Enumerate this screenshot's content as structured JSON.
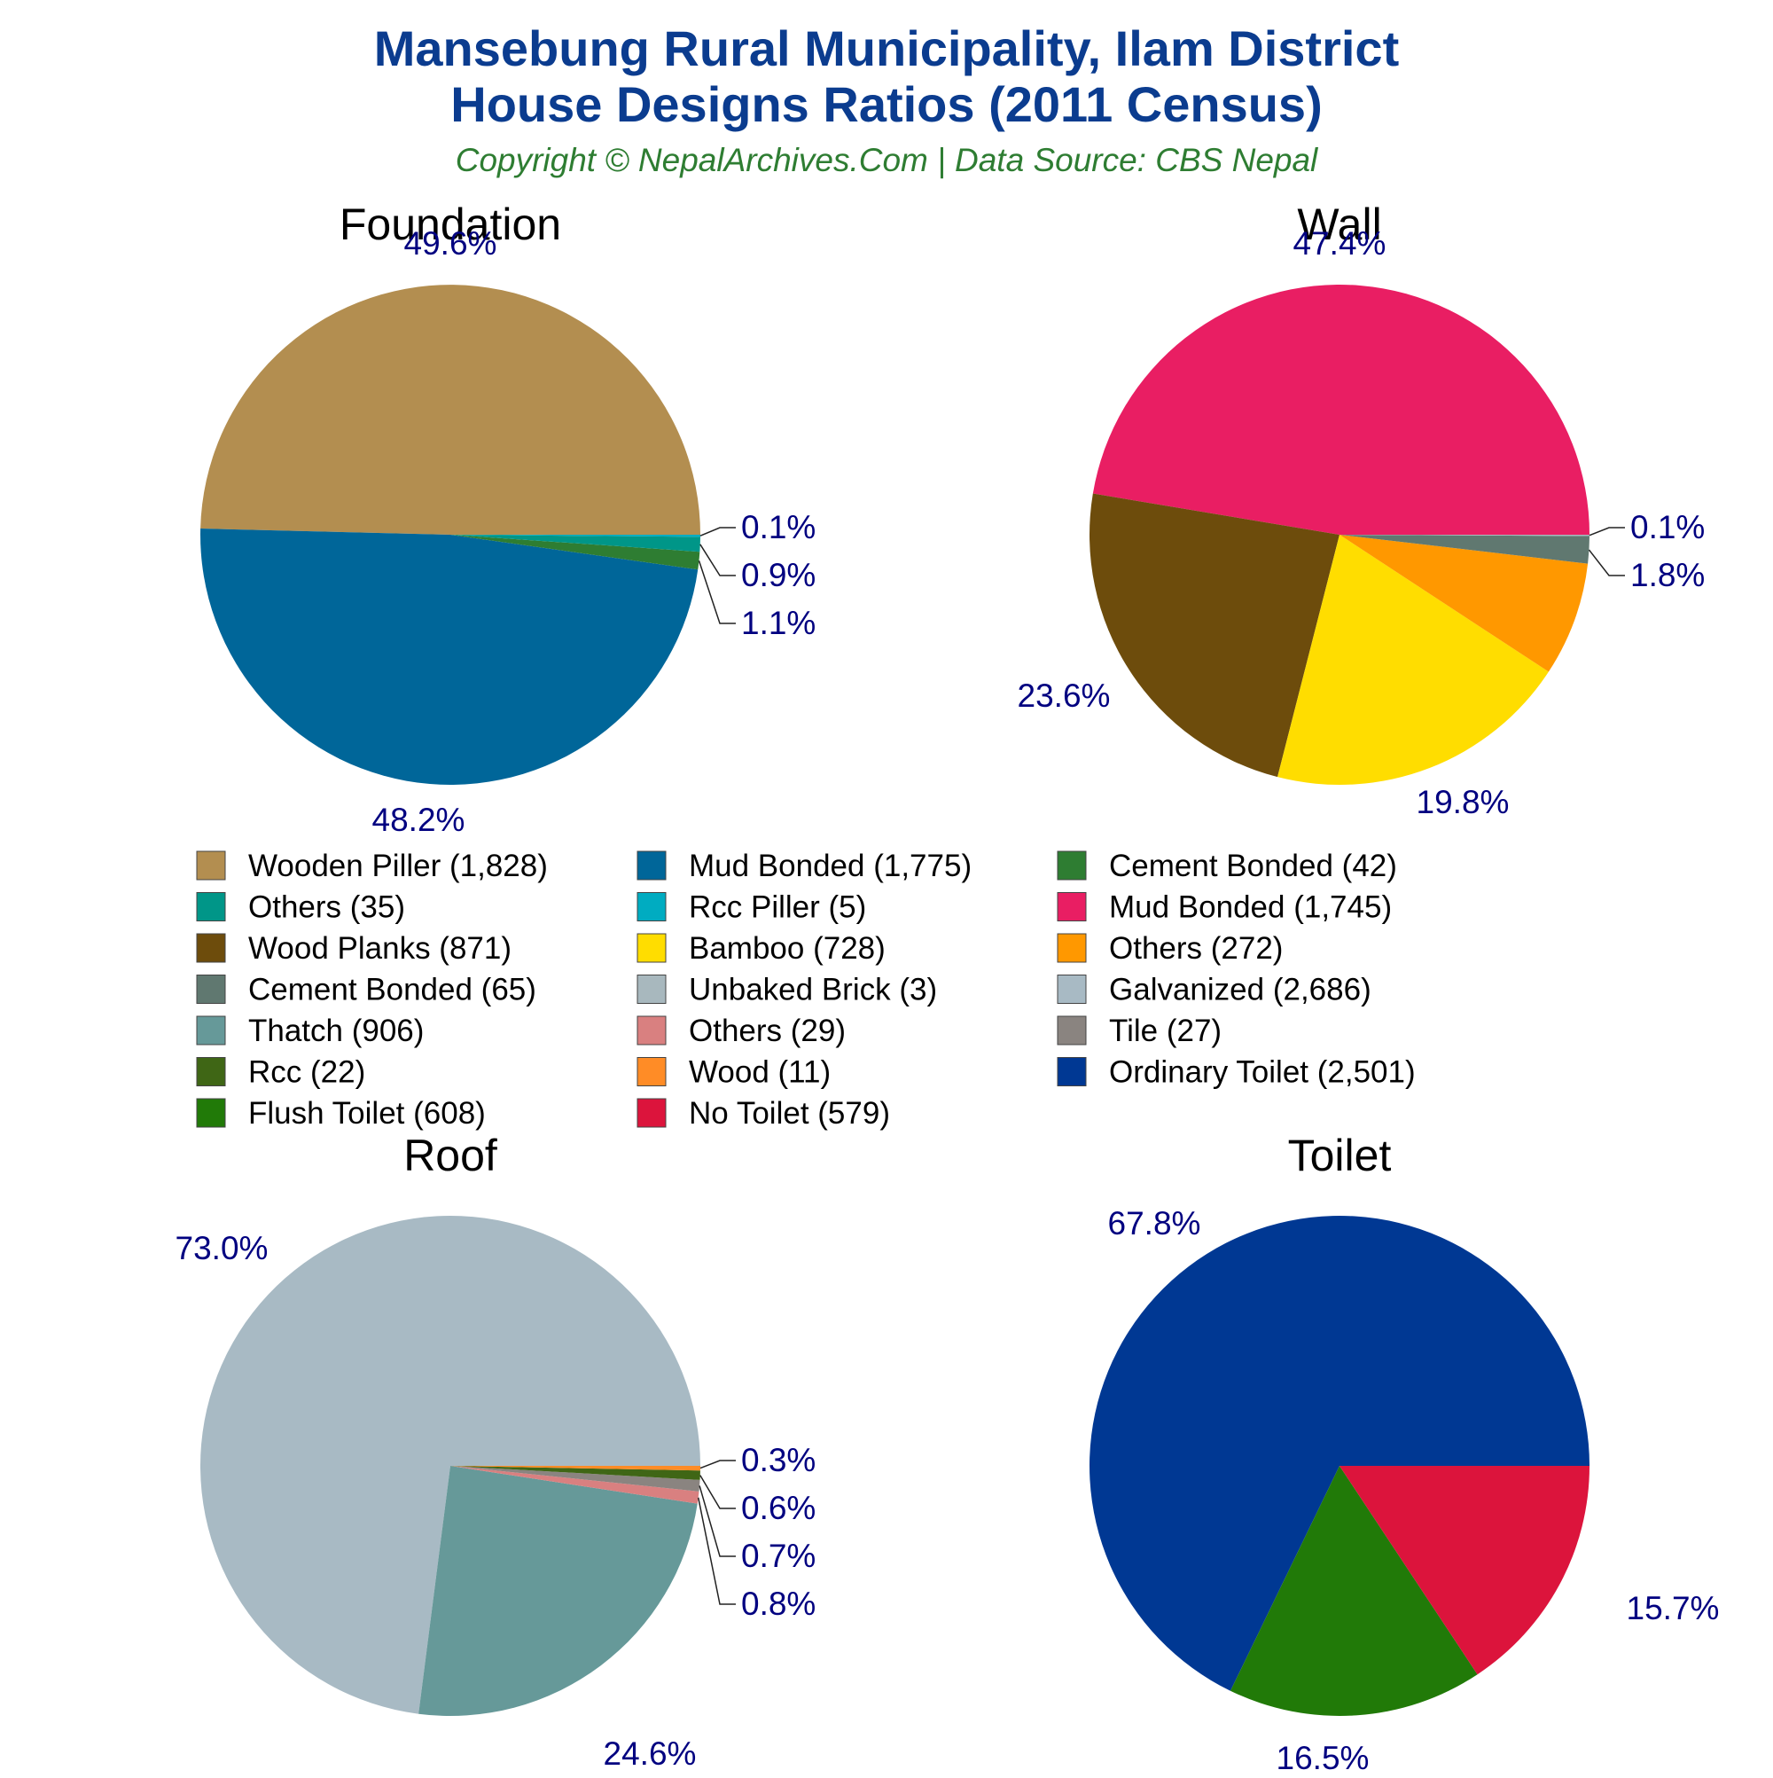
{
  "header": {
    "title_line1": "Mansebung Rural Municipality, Ilam District",
    "title_line2": "House Designs Ratios (2011 Census)",
    "subtitle": "Copyright © NepalArchives.Com | Data Source: CBS Nepal",
    "title_color": "#0B3C8F",
    "subtitle_color": "#2E7D32"
  },
  "label_color": "#000080",
  "chart_data": [
    {
      "type": "pie",
      "title": "Foundation",
      "slices": [
        {
          "label": "Wooden Piller",
          "value": 1828,
          "percent": "49.6%",
          "color": "#B38E50"
        },
        {
          "label": "Mud Bonded",
          "value": 1775,
          "percent": "48.2%",
          "color": "#006699"
        },
        {
          "label": "Cement Bonded",
          "value": 42,
          "percent": "1.1%",
          "color": "#2E7D32"
        },
        {
          "label": "Others",
          "value": 35,
          "percent": "0.9%",
          "color": "#009688"
        },
        {
          "label": "Rcc Piller",
          "value": 5,
          "percent": "0.1%",
          "color": "#00ACC1"
        }
      ]
    },
    {
      "type": "pie",
      "title": "Wall",
      "slices": [
        {
          "label": "Mud Bonded",
          "value": 1745,
          "percent": "47.4%",
          "color": "#E91E63"
        },
        {
          "label": "Wood Planks",
          "value": 871,
          "percent": "23.6%",
          "color": "#6D4C0C"
        },
        {
          "label": "Bamboo",
          "value": 728,
          "percent": "19.8%",
          "color": "#FFDD00"
        },
        {
          "label": "Others",
          "value": 272,
          "percent": "7.4%",
          "color": "#FF9800"
        },
        {
          "label": "Cement Bonded",
          "value": 65,
          "percent": "1.8%",
          "color": "#607870"
        },
        {
          "label": "Unbaked Brick",
          "value": 3,
          "percent": "0.1%",
          "color": "#A8B8BE"
        }
      ]
    },
    {
      "type": "pie",
      "title": "Roof",
      "slices": [
        {
          "label": "Galvanized",
          "value": 2686,
          "percent": "73.0%",
          "color": "#A8BAC4"
        },
        {
          "label": "Thatch",
          "value": 906,
          "percent": "24.6%",
          "color": "#669999"
        },
        {
          "label": "Others",
          "value": 29,
          "percent": "0.8%",
          "color": "#D98080"
        },
        {
          "label": "Tile",
          "value": 27,
          "percent": "0.7%",
          "color": "#8A8480"
        },
        {
          "label": "Rcc",
          "value": 22,
          "percent": "0.6%",
          "color": "#3F6615"
        },
        {
          "label": "Wood",
          "value": 11,
          "percent": "0.3%",
          "color": "#FF8C26"
        }
      ]
    },
    {
      "type": "pie",
      "title": "Toilet",
      "slices": [
        {
          "label": "Ordinary Toilet",
          "value": 2501,
          "percent": "67.8%",
          "color": "#003893"
        },
        {
          "label": "Flush Toilet",
          "value": 608,
          "percent": "16.5%",
          "color": "#217A08"
        },
        {
          "label": "No Toilet",
          "value": 579,
          "percent": "15.7%",
          "color": "#DC143C"
        }
      ]
    }
  ],
  "legend": [
    {
      "text": "Wooden Piller (1,828)",
      "color": "#B38E50"
    },
    {
      "text": "Mud Bonded (1,775)",
      "color": "#006699"
    },
    {
      "text": "Cement Bonded (42)",
      "color": "#2E7D32"
    },
    {
      "text": "Others (35)",
      "color": "#009688"
    },
    {
      "text": "Rcc Piller (5)",
      "color": "#00ACC1"
    },
    {
      "text": "Mud Bonded (1,745)",
      "color": "#E91E63"
    },
    {
      "text": "Wood Planks (871)",
      "color": "#6D4C0C"
    },
    {
      "text": "Bamboo (728)",
      "color": "#FFDD00"
    },
    {
      "text": "Others (272)",
      "color": "#FF9800"
    },
    {
      "text": "Cement Bonded (65)",
      "color": "#607870"
    },
    {
      "text": "Unbaked Brick (3)",
      "color": "#A8B8BE"
    },
    {
      "text": "Galvanized (2,686)",
      "color": "#A8BAC4"
    },
    {
      "text": "Thatch (906)",
      "color": "#669999"
    },
    {
      "text": "Others (29)",
      "color": "#D98080"
    },
    {
      "text": "Tile (27)",
      "color": "#8A8480"
    },
    {
      "text": "Rcc (22)",
      "color": "#3F6615"
    },
    {
      "text": "Wood (11)",
      "color": "#FF8C26"
    },
    {
      "text": "Ordinary Toilet (2,501)",
      "color": "#003893"
    },
    {
      "text": "Flush Toilet (608)",
      "color": "#217A08"
    },
    {
      "text": "No Toilet (579)",
      "color": "#DC143C"
    }
  ]
}
